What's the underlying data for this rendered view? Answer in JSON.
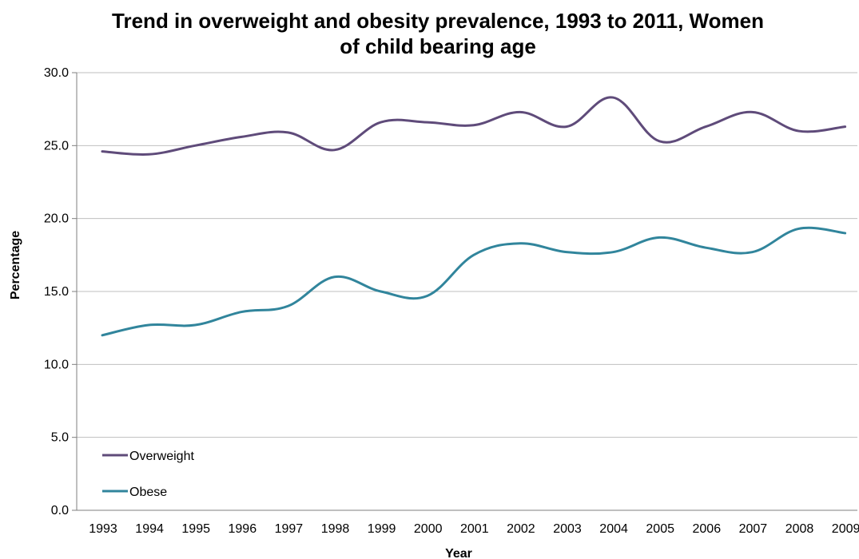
{
  "chart_data": {
    "type": "line",
    "title_line1": "Trend in overweight and obesity prevalence, 1993 to 2011, Women",
    "title_line2": "of child bearing age",
    "xlabel": "Year",
    "ylabel": "Percentage",
    "ylim": [
      0,
      30
    ],
    "yticks": [
      "0.0",
      "5.0",
      "10.0",
      "15.0",
      "20.0",
      "25.0",
      "30.0"
    ],
    "categories": [
      "1993",
      "1994",
      "1995",
      "1996",
      "1997",
      "1998",
      "1999",
      "2000",
      "2001",
      "2002",
      "2003",
      "2004",
      "2005",
      "2006",
      "2007",
      "2008",
      "2009"
    ],
    "grid": "horizontal",
    "legend_position": "bottom-left",
    "series": [
      {
        "name": "Overweight",
        "color": "#5f4b7a",
        "values": [
          24.6,
          24.4,
          25.0,
          25.6,
          25.9,
          24.7,
          26.6,
          26.6,
          26.4,
          27.3,
          26.3,
          28.3,
          25.3,
          26.3,
          27.3,
          26.0,
          26.3
        ]
      },
      {
        "name": "Obese",
        "color": "#31859c",
        "values": [
          12.0,
          12.7,
          12.7,
          13.6,
          14.0,
          16.0,
          15.0,
          14.7,
          17.5,
          18.3,
          17.7,
          17.7,
          18.7,
          18.0,
          17.7,
          19.3,
          19.0
        ]
      }
    ]
  }
}
